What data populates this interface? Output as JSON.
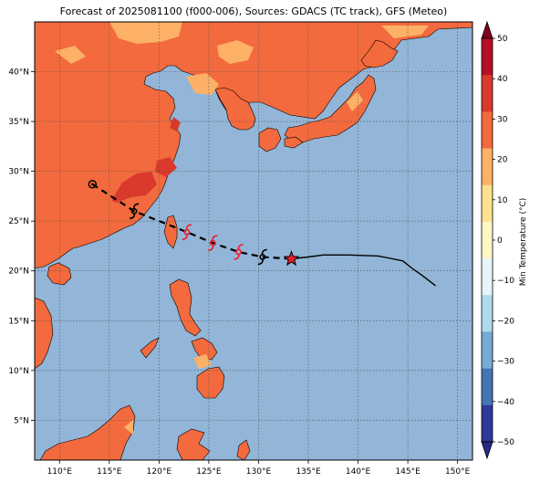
{
  "title": "Forecast of 2025081100 (f000-006), Sources: GDACS (TC track), GFS (Meteo)",
  "map": {
    "lon_range": [
      107.5,
      151.5
    ],
    "lat_range": [
      1,
      45
    ],
    "lon_ticks": [
      "110°E",
      "115°E",
      "120°E",
      "125°E",
      "130°E",
      "135°E",
      "140°E",
      "145°E",
      "150°E"
    ],
    "lat_ticks": [
      "5°N",
      "10°N",
      "15°N",
      "20°N",
      "25°N",
      "30°N",
      "35°N",
      "40°N"
    ],
    "ocean_color": "#92b5d8"
  },
  "colorbar": {
    "label": "Min Temperature (°C)",
    "ticks": [
      "50",
      "40",
      "30",
      "20",
      "10",
      "0",
      "−10",
      "−20",
      "−30",
      "−40",
      "−50"
    ],
    "colors": [
      "#7f0020",
      "#b50f26",
      "#d93a2b",
      "#f26a3d",
      "#fdb166",
      "#fee190",
      "#fdf8c4",
      "#e6f5f9",
      "#aedaeb",
      "#74acd2",
      "#4575b4",
      "#30389a",
      "#282b85"
    ]
  },
  "track": {
    "forecast_points": [
      {
        "lon": 113.3,
        "lat": 28.7,
        "symbol": "low"
      },
      {
        "lon": 117.5,
        "lat": 26.0,
        "symbol": "storm"
      },
      {
        "lon": 122.8,
        "lat": 23.9,
        "symbol": "typhoon"
      },
      {
        "lon": 125.4,
        "lat": 22.8,
        "symbol": "typhoon"
      },
      {
        "lon": 128.0,
        "lat": 21.9,
        "symbol": "typhoon"
      },
      {
        "lon": 130.4,
        "lat": 21.4,
        "symbol": "storm"
      }
    ],
    "current_position": {
      "lon": 133.3,
      "lat": 21.2
    },
    "past_track": [
      [
        133.3,
        21.2
      ],
      [
        135.0,
        21.4
      ],
      [
        136.5,
        21.6
      ],
      [
        139.0,
        21.6
      ],
      [
        142.0,
        21.5
      ],
      [
        143.0,
        21.3
      ],
      [
        144.5,
        21.0
      ],
      [
        145.5,
        20.2
      ],
      [
        146.5,
        19.5
      ],
      [
        147.8,
        18.5
      ]
    ]
  }
}
